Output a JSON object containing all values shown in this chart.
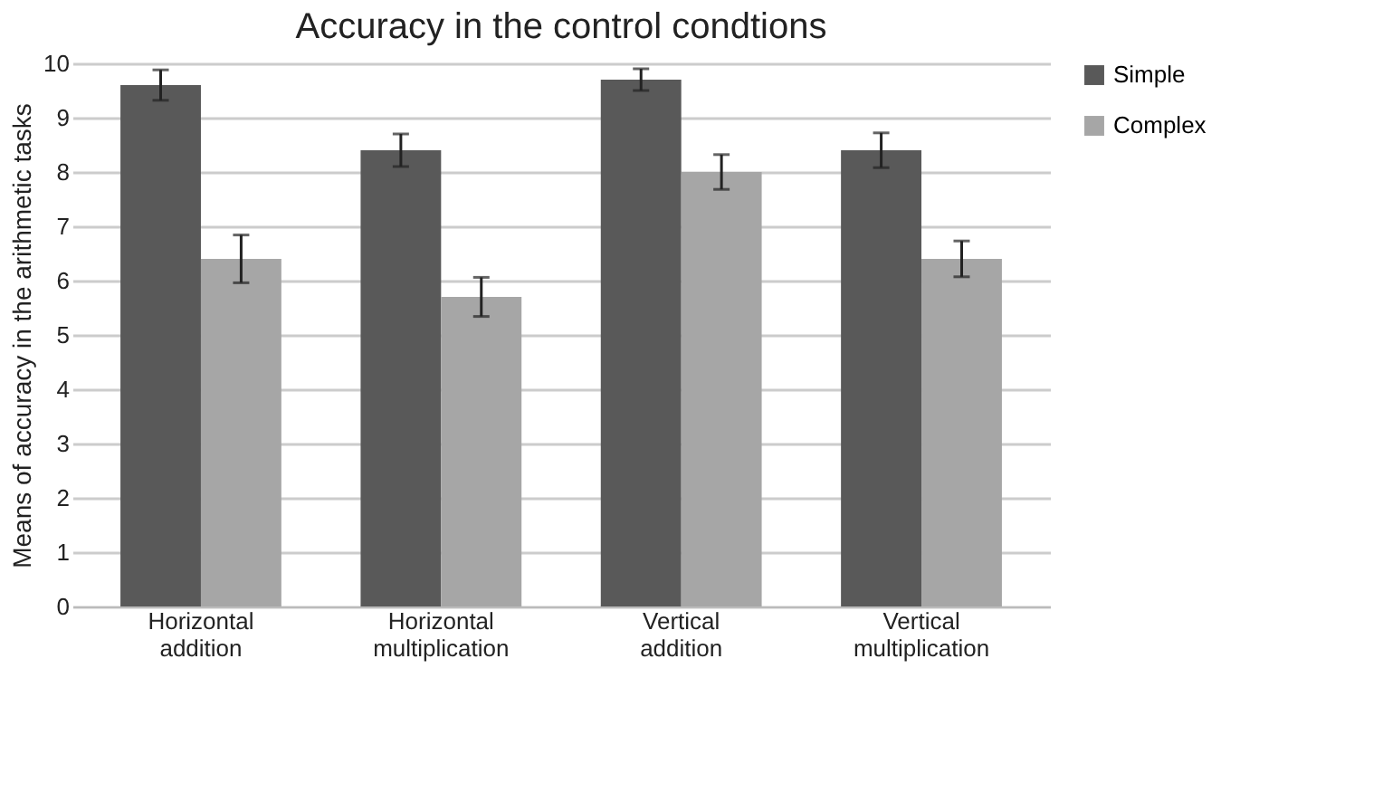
{
  "chart_data": {
    "type": "bar",
    "title": "Accuracy in the control condtions",
    "ylabel": "Means of accuracy in the arithmetic  tasks",
    "categories": [
      "Horizontal addition",
      "Horizontal multiplication",
      "Vertical addition",
      "Vertical multiplication"
    ],
    "series": [
      {
        "name": "Simple",
        "color": "#595959",
        "values": [
          9.6,
          8.4,
          9.7,
          8.4
        ],
        "errors": [
          0.28,
          0.3,
          0.2,
          0.32
        ]
      },
      {
        "name": "Complex",
        "color": "#a6a6a6",
        "values": [
          6.4,
          5.7,
          8.0,
          6.4
        ],
        "errors": [
          0.44,
          0.36,
          0.32,
          0.33
        ]
      }
    ],
    "ylim": [
      0,
      10
    ],
    "yticks": [
      0,
      1,
      2,
      3,
      4,
      5,
      6,
      7,
      8,
      9,
      10
    ],
    "grid": "y",
    "legend": "right"
  }
}
